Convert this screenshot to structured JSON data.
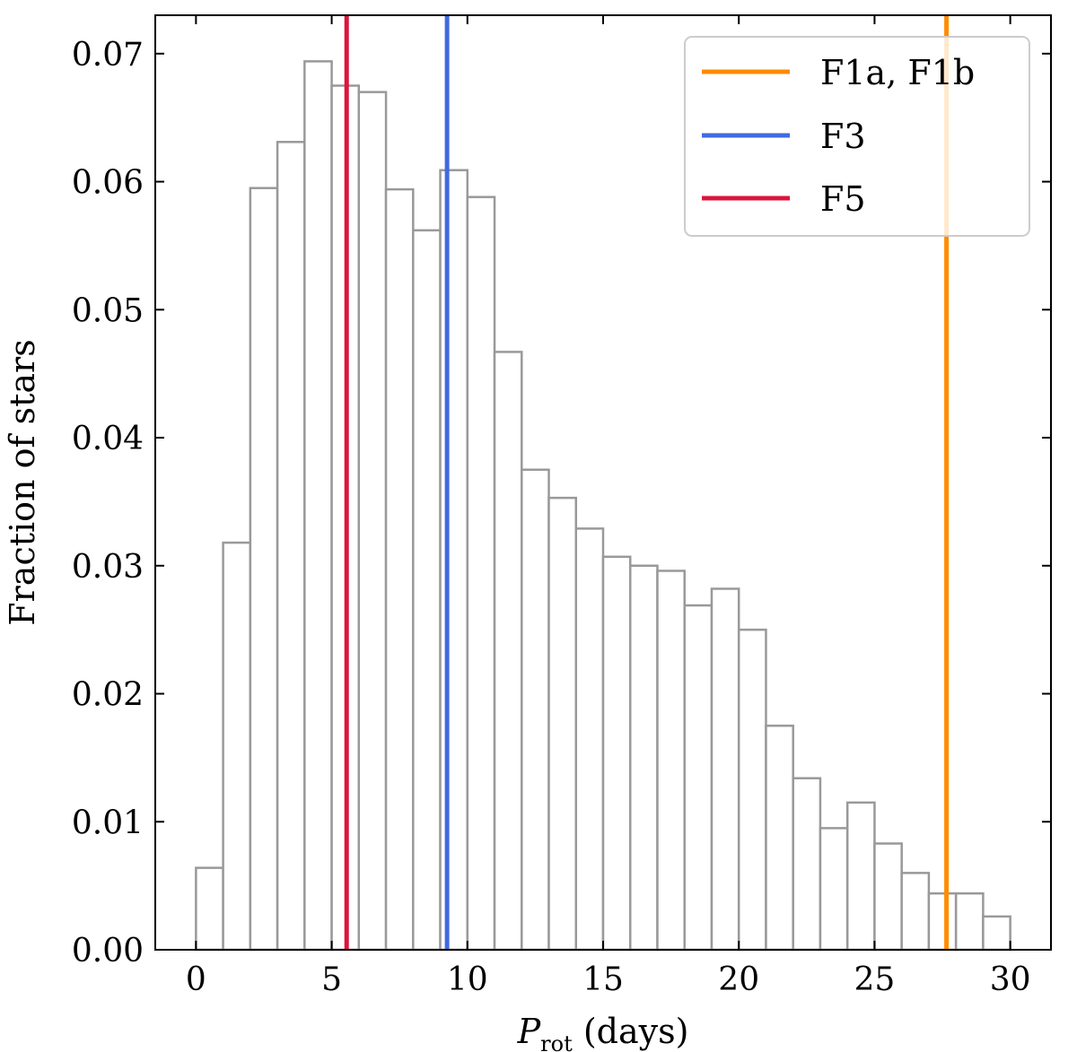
{
  "chart_data": {
    "type": "bar",
    "title": "",
    "xlabel": {
      "symbol": "P",
      "subscript": "rot",
      "rest": " (days)"
    },
    "ylabel": "Fraction of stars",
    "xlim": [
      -1.5,
      31.5
    ],
    "ylim": [
      0,
      0.073
    ],
    "xticks": [
      0,
      5,
      10,
      15,
      20,
      25,
      30
    ],
    "xtick_labels": [
      "0",
      "5",
      "10",
      "15",
      "20",
      "25",
      "30"
    ],
    "yticks": [
      0.0,
      0.01,
      0.02,
      0.03,
      0.04,
      0.05,
      0.06,
      0.07
    ],
    "ytick_labels": [
      "0.00",
      "0.01",
      "0.02",
      "0.03",
      "0.04",
      "0.05",
      "0.06",
      "0.07"
    ],
    "bin_edges": [
      0,
      1,
      2,
      3,
      4,
      5,
      6,
      7,
      8,
      9,
      10,
      11,
      12,
      13,
      14,
      15,
      16,
      17,
      18,
      19,
      20,
      21,
      22,
      23,
      24,
      25,
      26,
      27,
      28,
      29,
      30
    ],
    "values": [
      0.0064,
      0.0318,
      0.0595,
      0.0631,
      0.0694,
      0.0675,
      0.067,
      0.0594,
      0.0562,
      0.0609,
      0.0588,
      0.0467,
      0.0375,
      0.0353,
      0.0329,
      0.0307,
      0.03,
      0.0296,
      0.0269,
      0.0282,
      0.025,
      0.0175,
      0.0134,
      0.0095,
      0.0115,
      0.0083,
      0.006,
      0.0044,
      0.0044,
      0.0026
    ],
    "bar_edge_color": "#999999",
    "bar_fill_color": "#ffffff",
    "vlines": [
      {
        "label": "F1a, F1b",
        "x": 27.65,
        "color": "#ff8c00"
      },
      {
        "label": "F3",
        "x": 9.25,
        "color": "#4169e1"
      },
      {
        "label": "F5",
        "x": 5.55,
        "color": "#dc143c"
      }
    ],
    "legend_position": "top-right",
    "tick_direction": "in",
    "ticks_on_all_sides": true
  }
}
